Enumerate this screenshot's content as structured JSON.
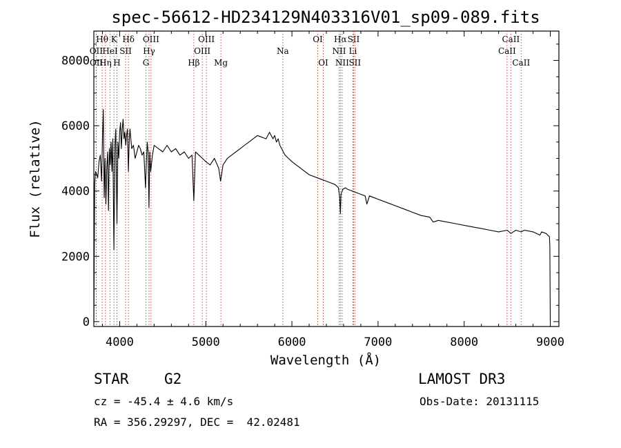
{
  "chart_data": {
    "type": "line",
    "title": "spec-56612-HD234129N403316V01_sp09-089.fits",
    "xlabel": "Wavelength (Å)",
    "ylabel": "Flux (relative)",
    "xlim": [
      3700,
      9100
    ],
    "ylim": [
      -150,
      8900
    ],
    "x_ticks": [
      4000,
      5000,
      6000,
      7000,
      8000,
      9000
    ],
    "y_ticks": [
      0,
      2000,
      4000,
      6000,
      8000
    ],
    "grid": false,
    "series": [
      {
        "name": "flux",
        "x": [
          3700,
          3710,
          3720,
          3735,
          3745,
          3760,
          3775,
          3790,
          3800,
          3810,
          3820,
          3830,
          3840,
          3850,
          3860,
          3870,
          3880,
          3890,
          3900,
          3910,
          3920,
          3933,
          3945,
          3955,
          3968,
          3980,
          3990,
          4000,
          4010,
          4020,
          4030,
          4040,
          4050,
          4060,
          4070,
          4080,
          4090,
          4101,
          4110,
          4120,
          4140,
          4160,
          4180,
          4200,
          4220,
          4240,
          4260,
          4280,
          4300,
          4310,
          4320,
          4330,
          4340,
          4350,
          4360,
          4380,
          4400,
          4450,
          4500,
          4550,
          4600,
          4650,
          4700,
          4750,
          4800,
          4840,
          4861,
          4880,
          4920,
          4960,
          5000,
          5050,
          5100,
          5150,
          5172,
          5183,
          5200,
          5250,
          5300,
          5350,
          5400,
          5450,
          5500,
          5550,
          5600,
          5650,
          5700,
          5740,
          5780,
          5800,
          5820,
          5840,
          5860,
          5880,
          5900,
          5920,
          5960,
          6000,
          6050,
          6100,
          6150,
          6200,
          6250,
          6300,
          6350,
          6400,
          6450,
          6500,
          6540,
          6555,
          6563,
          6570,
          6590,
          6620,
          6650,
          6700,
          6750,
          6800,
          6850,
          6870,
          6900,
          6950,
          7000,
          7100,
          7200,
          7300,
          7400,
          7500,
          7600,
          7640,
          7700,
          7800,
          7900,
          8000,
          8100,
          8200,
          8300,
          8400,
          8500,
          8542,
          8600,
          8662,
          8700,
          8800,
          8880,
          8900,
          8950,
          8990,
          8995,
          9000
        ],
        "y": [
          0,
          4200,
          4600,
          4500,
          4400,
          4900,
          5100,
          4300,
          5600,
          6500,
          3800,
          5000,
          3600,
          4700,
          5200,
          3400,
          5300,
          4800,
          5500,
          4600,
          5600,
          2200,
          5400,
          5900,
          3000,
          5500,
          5000,
          5800,
          6100,
          5300,
          5900,
          6200,
          5600,
          5800,
          5400,
          5700,
          5900,
          4600,
          5500,
          5900,
          5300,
          5400,
          5000,
          5200,
          5400,
          5300,
          5100,
          5200,
          4100,
          4900,
          5500,
          5200,
          3500,
          5200,
          4600,
          5100,
          5400,
          5300,
          5200,
          5400,
          5200,
          5300,
          5100,
          5200,
          5000,
          5100,
          3700,
          5200,
          5100,
          5000,
          4900,
          4800,
          5000,
          4700,
          4300,
          4500,
          4800,
          5000,
          5100,
          5200,
          5300,
          5400,
          5500,
          5600,
          5700,
          5650,
          5600,
          5800,
          5600,
          5700,
          5500,
          5600,
          5400,
          5300,
          5200,
          5100,
          5000,
          4900,
          4800,
          4700,
          4600,
          4500,
          4450,
          4400,
          4350,
          4300,
          4250,
          4200,
          4100,
          3800,
          3300,
          3900,
          4050,
          4100,
          4050,
          4000,
          3950,
          3900,
          3850,
          3600,
          3850,
          3800,
          3750,
          3650,
          3550,
          3450,
          3350,
          3250,
          3200,
          3050,
          3100,
          3050,
          3000,
          2950,
          2900,
          2850,
          2800,
          2750,
          2800,
          2700,
          2800,
          2750,
          2800,
          2750,
          2650,
          2750,
          2700,
          2600,
          2300,
          0
        ]
      }
    ],
    "line_markers": [
      {
        "label": "Hθ",
        "wavelength": 3797,
        "row": 1
      },
      {
        "label": "OII",
        "wavelength": 3727,
        "row": 2
      },
      {
        "label": "OII",
        "wavelength": 3729,
        "row": 3
      },
      {
        "label": "K",
        "wavelength": 3934,
        "row": 1
      },
      {
        "label": "HeI",
        "wavelength": 3889,
        "row": 2
      },
      {
        "label": "Hη",
        "wavelength": 3835,
        "row": 3
      },
      {
        "label": "H",
        "wavelength": 3968,
        "row": 3
      },
      {
        "label": "SII",
        "wavelength": 4069,
        "row": 2
      },
      {
        "label": "Hδ",
        "wavelength": 4102,
        "row": 1
      },
      {
        "label": "OIII",
        "wavelength": 4364,
        "row": 1
      },
      {
        "label": "Hγ",
        "wavelength": 4341,
        "row": 2
      },
      {
        "label": "G",
        "wavelength": 4305,
        "row": 3
      },
      {
        "label": "Hβ",
        "wavelength": 4861,
        "row": 3
      },
      {
        "label": "OIII",
        "wavelength": 5007,
        "row": 1
      },
      {
        "label": "OIII",
        "wavelength": 4959,
        "row": 2
      },
      {
        "label": "Mg",
        "wavelength": 5175,
        "row": 3
      },
      {
        "label": "Na",
        "wavelength": 5894,
        "row": 2
      },
      {
        "label": "OI",
        "wavelength": 6300,
        "row": 1
      },
      {
        "label": "OI",
        "wavelength": 6364,
        "row": 3
      },
      {
        "label": "Hα",
        "wavelength": 6563,
        "row": 1
      },
      {
        "label": "SII",
        "wavelength": 6716,
        "row": 1
      },
      {
        "label": "NII",
        "wavelength": 6548,
        "row": 2
      },
      {
        "label": "Li",
        "wavelength": 6708,
        "row": 2
      },
      {
        "label": "NII",
        "wavelength": 6583,
        "row": 3
      },
      {
        "label": "SII",
        "wavelength": 6731,
        "row": 3
      },
      {
        "label": "CaII",
        "wavelength": 8542,
        "row": 1
      },
      {
        "label": "CaII",
        "wavelength": 8498,
        "row": 2
      },
      {
        "label": "CaII",
        "wavelength": 8662,
        "row": 3
      }
    ]
  },
  "info": {
    "object_class": "STAR",
    "subclass": "G2",
    "survey": "LAMOST DR3",
    "redshift": "cz = -45.4 ± 4.6 km/s",
    "obs_date": "Obs-Date: 20131115",
    "coordinates": "RA = 356.29297, DEC =  42.02481"
  },
  "colors": {
    "spectrum": "#000000",
    "marker_line": "#c0392b",
    "text": "#000000"
  }
}
